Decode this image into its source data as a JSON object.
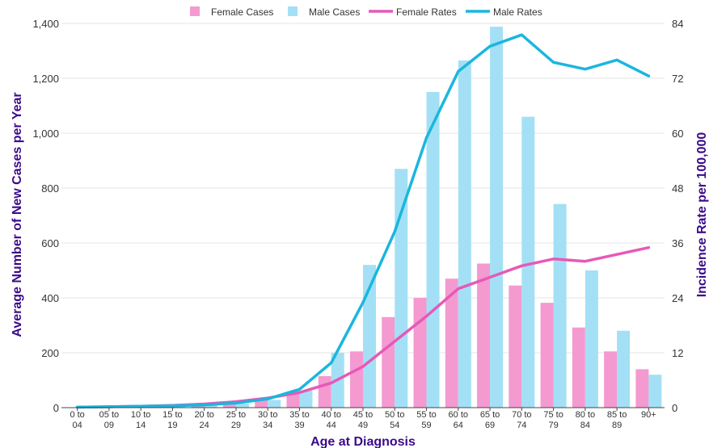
{
  "chart_data": {
    "type": "bar",
    "categories": [
      [
        "0 to",
        "04"
      ],
      [
        "05 to",
        "09"
      ],
      [
        "10 to",
        "14"
      ],
      [
        "15 to",
        "19"
      ],
      [
        "20 to",
        "24"
      ],
      [
        "25 to",
        "29"
      ],
      [
        "30 to",
        "34"
      ],
      [
        "35 to",
        "39"
      ],
      [
        "40 to",
        "44"
      ],
      [
        "45 to",
        "49"
      ],
      [
        "50 to",
        "54"
      ],
      [
        "55 to",
        "59"
      ],
      [
        "60 to",
        "64"
      ],
      [
        "65 to",
        "69"
      ],
      [
        "70 to",
        "74"
      ],
      [
        "75 to",
        "79"
      ],
      [
        "80 to",
        "84"
      ],
      [
        "85 to",
        "89"
      ],
      [
        "90+",
        ""
      ]
    ],
    "bar_series": [
      {
        "name": "Female Cases",
        "color": "#f49ad0",
        "values": [
          1,
          2,
          4,
          6,
          10,
          22,
          30,
          55,
          115,
          205,
          330,
          400,
          470,
          525,
          445,
          382,
          292,
          205,
          140
        ]
      },
      {
        "name": "Male Cases",
        "color": "#a3e0f5",
        "values": [
          2,
          3,
          5,
          7,
          8,
          15,
          28,
          62,
          200,
          520,
          870,
          1150,
          1265,
          1388,
          1060,
          742,
          500,
          280,
          120
        ]
      }
    ],
    "line_series": [
      {
        "name": "Female Rates",
        "color": "#e659b8",
        "values": [
          0.1,
          0.2,
          0.3,
          0.5,
          0.8,
          1.3,
          2.1,
          3.3,
          5.4,
          9.0,
          14.5,
          20.0,
          26.0,
          28.5,
          31.0,
          32.5,
          32.0,
          33.5,
          35.0
        ]
      },
      {
        "name": "Male Rates",
        "color": "#1ab6de",
        "values": [
          0.1,
          0.2,
          0.3,
          0.4,
          0.6,
          1.0,
          1.9,
          4.0,
          9.8,
          23.0,
          38.5,
          59.0,
          73.5,
          79.0,
          81.5,
          75.5,
          74.0,
          76.0,
          72.5
        ]
      }
    ],
    "xlabel": "Age at Diagnosis",
    "ylabel_left": "Average Number of New Cases per Year",
    "ylabel_right": "Incidence Rate per 100,000",
    "ylim_left": [
      0,
      1400
    ],
    "yticks_left": [
      0,
      200,
      400,
      600,
      800,
      1000,
      1200,
      1400
    ],
    "ytick_labels_left": [
      "0",
      "200",
      "400",
      "600",
      "800",
      "1,000",
      "1,200",
      "1,400"
    ],
    "ylim_right": [
      0,
      84
    ],
    "yticks_right": [
      0,
      12,
      24,
      36,
      48,
      60,
      72,
      84
    ],
    "ytick_labels_right": [
      "0",
      "12",
      "24",
      "36",
      "48",
      "60",
      "72",
      "84"
    ],
    "legend_position": "top-center",
    "grid": true,
    "axis_title_color": "#3b0a8a"
  }
}
